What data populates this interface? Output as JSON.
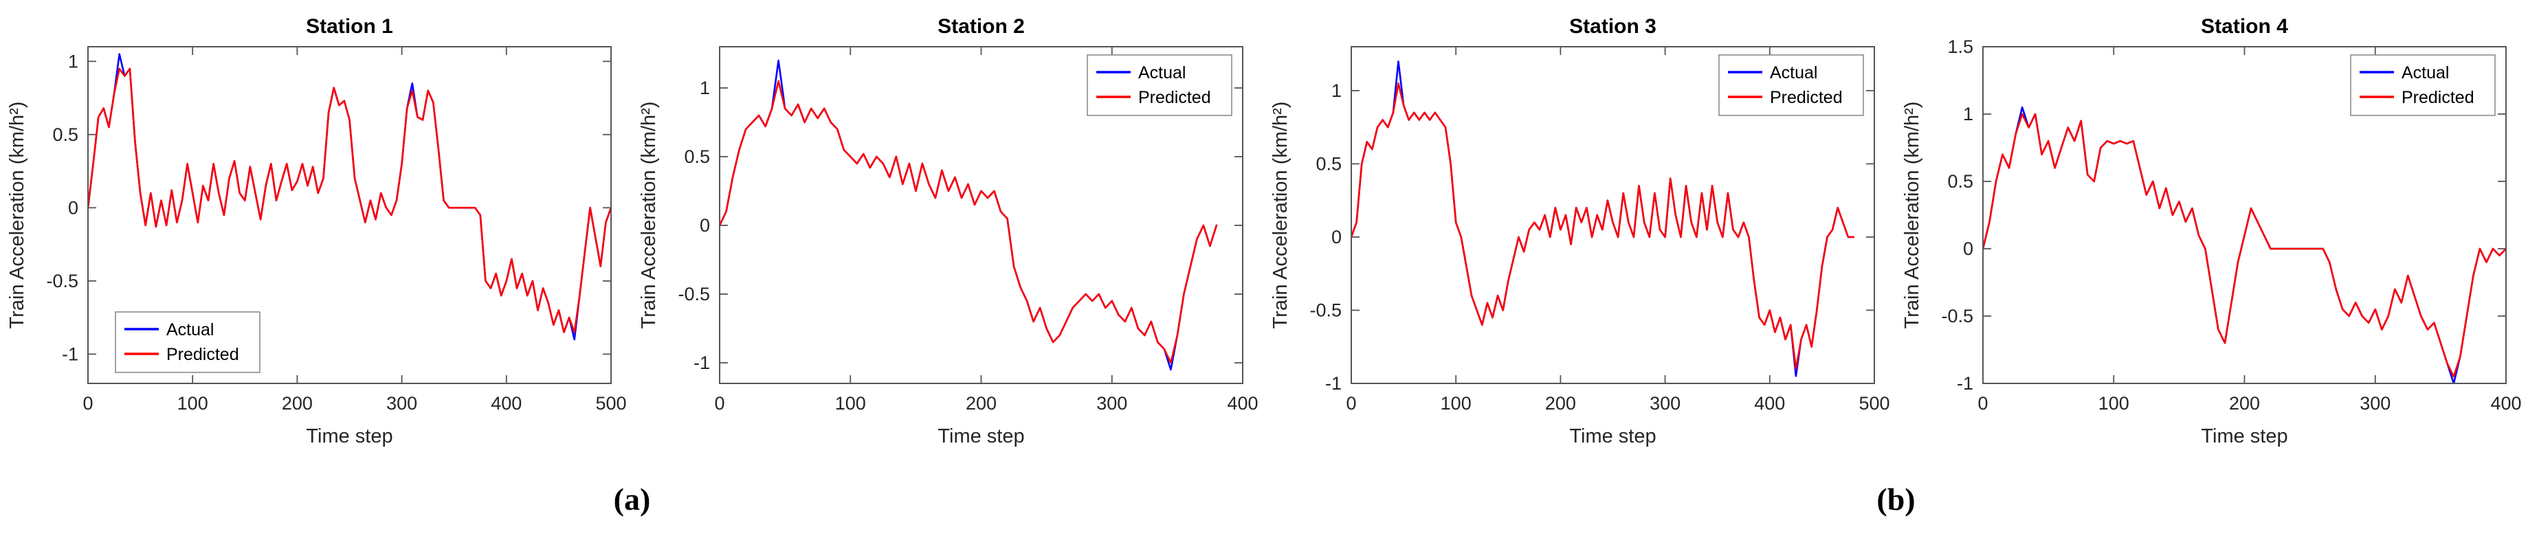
{
  "figure_labels": {
    "a": "(a)",
    "b": "(b)"
  },
  "colors": {
    "actual": "#0000ff",
    "predicted": "#ff0000",
    "axis": "#555555",
    "text": "#262626",
    "background": "#ffffff"
  },
  "chart_data": [
    {
      "type": "line",
      "title": "Station 1",
      "xlabel": "Time step",
      "ylabel": "Train Acceleration (km/h²)",
      "xlim": [
        0,
        500
      ],
      "ylim": [
        -1.2,
        1.1
      ],
      "xticks": [
        0,
        100,
        200,
        300,
        400,
        500
      ],
      "yticks": [
        -1,
        -0.5,
        0,
        0.5,
        1
      ],
      "grid": false,
      "legend_position": "lower-left",
      "x_start": 0,
      "x_step": 5,
      "series": [
        {
          "name": "Actual",
          "color": "#0000ff",
          "values": [
            0,
            0.3,
            0.62,
            0.68,
            0.55,
            0.78,
            1.05,
            0.9,
            0.95,
            0.45,
            0.1,
            -0.12,
            0.1,
            -0.13,
            0.05,
            -0.12,
            0.12,
            -0.1,
            0.05,
            0.3,
            0.1,
            -0.1,
            0.15,
            0.05,
            0.3,
            0.1,
            -0.05,
            0.2,
            0.32,
            0.1,
            0.05,
            0.28,
            0.1,
            -0.08,
            0.15,
            0.3,
            0.05,
            0.18,
            0.3,
            0.12,
            0.18,
            0.3,
            0.15,
            0.28,
            0.1,
            0.2,
            0.65,
            0.82,
            0.7,
            0.73,
            0.6,
            0.2,
            0.05,
            -0.1,
            0.05,
            -0.08,
            0.1,
            0,
            -0.05,
            0.05,
            0.3,
            0.68,
            0.85,
            0.62,
            0.6,
            0.8,
            0.72,
            0.4,
            0.05,
            0,
            0,
            0,
            0,
            0,
            0,
            -0.05,
            -0.5,
            -0.55,
            -0.45,
            -0.6,
            -0.5,
            -0.35,
            -0.55,
            -0.45,
            -0.6,
            -0.5,
            -0.7,
            -0.55,
            -0.65,
            -0.8,
            -0.7,
            -0.85,
            -0.75,
            -0.9,
            -0.6,
            -0.3,
            0,
            -0.2,
            -0.4,
            -0.1,
            0
          ]
        },
        {
          "name": "Predicted",
          "color": "#ff0000",
          "values": [
            0,
            0.3,
            0.62,
            0.68,
            0.55,
            0.78,
            0.95,
            0.9,
            0.95,
            0.45,
            0.1,
            -0.12,
            0.1,
            -0.13,
            0.05,
            -0.12,
            0.12,
            -0.1,
            0.05,
            0.3,
            0.1,
            -0.1,
            0.15,
            0.05,
            0.3,
            0.1,
            -0.05,
            0.2,
            0.32,
            0.1,
            0.05,
            0.28,
            0.1,
            -0.08,
            0.15,
            0.3,
            0.05,
            0.18,
            0.3,
            0.12,
            0.18,
            0.3,
            0.15,
            0.28,
            0.1,
            0.2,
            0.65,
            0.82,
            0.7,
            0.73,
            0.6,
            0.2,
            0.05,
            -0.1,
            0.05,
            -0.08,
            0.1,
            0,
            -0.05,
            0.05,
            0.3,
            0.68,
            0.8,
            0.62,
            0.6,
            0.8,
            0.72,
            0.4,
            0.05,
            0,
            0,
            0,
            0,
            0,
            0,
            -0.05,
            -0.5,
            -0.55,
            -0.45,
            -0.6,
            -0.5,
            -0.35,
            -0.55,
            -0.45,
            -0.6,
            -0.5,
            -0.7,
            -0.55,
            -0.65,
            -0.8,
            -0.7,
            -0.85,
            -0.75,
            -0.85,
            -0.6,
            -0.3,
            0,
            -0.2,
            -0.4,
            -0.1,
            0
          ]
        }
      ]
    },
    {
      "type": "line",
      "title": "Station 2",
      "xlabel": "Time step",
      "ylabel": "Train Acceleration (km/h²)",
      "xlim": [
        0,
        400
      ],
      "ylim": [
        -1.15,
        1.3
      ],
      "xticks": [
        0,
        100,
        200,
        300,
        400
      ],
      "yticks": [
        -1,
        -0.5,
        0,
        0.5,
        1
      ],
      "grid": false,
      "legend_position": "upper-right",
      "x_start": 0,
      "x_step": 5,
      "series": [
        {
          "name": "Actual",
          "color": "#0000ff",
          "values": [
            0,
            0.1,
            0.35,
            0.55,
            0.7,
            0.75,
            0.8,
            0.72,
            0.85,
            1.2,
            0.85,
            0.8,
            0.88,
            0.75,
            0.85,
            0.78,
            0.85,
            0.75,
            0.7,
            0.55,
            0.5,
            0.45,
            0.52,
            0.42,
            0.5,
            0.45,
            0.35,
            0.5,
            0.3,
            0.45,
            0.25,
            0.45,
            0.3,
            0.2,
            0.4,
            0.25,
            0.35,
            0.2,
            0.3,
            0.15,
            0.25,
            0.2,
            0.25,
            0.1,
            0.05,
            -0.3,
            -0.45,
            -0.55,
            -0.7,
            -0.6,
            -0.75,
            -0.85,
            -0.8,
            -0.7,
            -0.6,
            -0.55,
            -0.5,
            -0.55,
            -0.5,
            -0.6,
            -0.55,
            -0.65,
            -0.7,
            -0.6,
            -0.75,
            -0.8,
            -0.7,
            -0.85,
            -0.9,
            -1.05,
            -0.8,
            -0.5,
            -0.3,
            -0.1,
            0,
            -0.15,
            0
          ]
        },
        {
          "name": "Predicted",
          "color": "#ff0000",
          "values": [
            0,
            0.1,
            0.35,
            0.55,
            0.7,
            0.75,
            0.8,
            0.72,
            0.85,
            1.05,
            0.85,
            0.8,
            0.88,
            0.75,
            0.85,
            0.78,
            0.85,
            0.75,
            0.7,
            0.55,
            0.5,
            0.45,
            0.52,
            0.42,
            0.5,
            0.45,
            0.35,
            0.5,
            0.3,
            0.45,
            0.25,
            0.45,
            0.3,
            0.2,
            0.4,
            0.25,
            0.35,
            0.2,
            0.3,
            0.15,
            0.25,
            0.2,
            0.25,
            0.1,
            0.05,
            -0.3,
            -0.45,
            -0.55,
            -0.7,
            -0.6,
            -0.75,
            -0.85,
            -0.8,
            -0.7,
            -0.6,
            -0.55,
            -0.5,
            -0.55,
            -0.5,
            -0.6,
            -0.55,
            -0.65,
            -0.7,
            -0.6,
            -0.75,
            -0.8,
            -0.7,
            -0.85,
            -0.9,
            -1,
            -0.8,
            -0.5,
            -0.3,
            -0.1,
            0,
            -0.15,
            0
          ]
        }
      ]
    },
    {
      "type": "line",
      "title": "Station 3",
      "xlabel": "Time step",
      "ylabel": "Train Acceleration (km/h²)",
      "xlim": [
        0,
        500
      ],
      "ylim": [
        -1,
        1.3
      ],
      "xticks": [
        0,
        100,
        200,
        300,
        400,
        500
      ],
      "yticks": [
        -1,
        -0.5,
        0,
        0.5,
        1
      ],
      "grid": false,
      "legend_position": "upper-right",
      "x_start": 0,
      "x_step": 5,
      "series": [
        {
          "name": "Actual",
          "color": "#0000ff",
          "values": [
            0,
            0.1,
            0.5,
            0.65,
            0.6,
            0.75,
            0.8,
            0.75,
            0.85,
            1.2,
            0.9,
            0.8,
            0.85,
            0.8,
            0.85,
            0.8,
            0.85,
            0.8,
            0.75,
            0.5,
            0.1,
            0,
            -0.2,
            -0.4,
            -0.5,
            -0.6,
            -0.45,
            -0.55,
            -0.4,
            -0.5,
            -0.3,
            -0.15,
            0,
            -0.1,
            0.05,
            0.1,
            0.05,
            0.15,
            0,
            0.2,
            0.05,
            0.15,
            -0.05,
            0.2,
            0.1,
            0.2,
            0,
            0.15,
            0.05,
            0.25,
            0.1,
            0,
            0.3,
            0.1,
            0,
            0.35,
            0.1,
            0,
            0.3,
            0.05,
            0,
            0.4,
            0.15,
            0,
            0.35,
            0.1,
            0,
            0.3,
            0.05,
            0.35,
            0.1,
            0,
            0.3,
            0.05,
            0,
            0.1,
            0,
            -0.3,
            -0.55,
            -0.6,
            -0.5,
            -0.65,
            -0.55,
            -0.7,
            -0.6,
            -0.95,
            -0.7,
            -0.6,
            -0.75,
            -0.5,
            -0.2,
            0,
            0.05,
            0.2,
            0.1,
            0,
            0
          ]
        },
        {
          "name": "Predicted",
          "color": "#ff0000",
          "values": [
            0,
            0.1,
            0.5,
            0.65,
            0.6,
            0.75,
            0.8,
            0.75,
            0.85,
            1.05,
            0.9,
            0.8,
            0.85,
            0.8,
            0.85,
            0.8,
            0.85,
            0.8,
            0.75,
            0.5,
            0.1,
            0,
            -0.2,
            -0.4,
            -0.5,
            -0.6,
            -0.45,
            -0.55,
            -0.4,
            -0.5,
            -0.3,
            -0.15,
            0,
            -0.1,
            0.05,
            0.1,
            0.05,
            0.15,
            0,
            0.2,
            0.05,
            0.15,
            -0.05,
            0.2,
            0.1,
            0.2,
            0,
            0.15,
            0.05,
            0.25,
            0.1,
            0,
            0.3,
            0.1,
            0,
            0.35,
            0.1,
            0,
            0.3,
            0.05,
            0,
            0.4,
            0.15,
            0,
            0.35,
            0.1,
            0,
            0.3,
            0.05,
            0.35,
            0.1,
            0,
            0.3,
            0.05,
            0,
            0.1,
            0,
            -0.3,
            -0.55,
            -0.6,
            -0.5,
            -0.65,
            -0.55,
            -0.7,
            -0.6,
            -0.9,
            -0.7,
            -0.6,
            -0.75,
            -0.5,
            -0.2,
            0,
            0.05,
            0.2,
            0.1,
            0,
            0
          ]
        }
      ]
    },
    {
      "type": "line",
      "title": "Station 4",
      "xlabel": "Time step",
      "ylabel": "Train Acceleration (km/h²)",
      "xlim": [
        0,
        400
      ],
      "ylim": [
        -1,
        1.5
      ],
      "xticks": [
        0,
        100,
        200,
        300,
        400
      ],
      "yticks": [
        -1,
        -0.5,
        0,
        0.5,
        1,
        1.5
      ],
      "grid": false,
      "legend_position": "upper-right",
      "x_start": 0,
      "x_step": 5,
      "series": [
        {
          "name": "Actual",
          "color": "#0000ff",
          "values": [
            0,
            0.2,
            0.5,
            0.7,
            0.6,
            0.85,
            1.05,
            0.9,
            1,
            0.7,
            0.8,
            0.6,
            0.75,
            0.9,
            0.8,
            0.95,
            0.55,
            0.5,
            0.75,
            0.8,
            0.78,
            0.8,
            0.78,
            0.8,
            0.6,
            0.4,
            0.5,
            0.3,
            0.45,
            0.25,
            0.35,
            0.2,
            0.3,
            0.1,
            0,
            -0.3,
            -0.6,
            -0.7,
            -0.4,
            -0.1,
            0.1,
            0.3,
            0.2,
            0.1,
            0,
            0,
            0,
            0,
            0,
            0,
            0,
            0,
            0,
            -0.1,
            -0.3,
            -0.45,
            -0.5,
            -0.4,
            -0.5,
            -0.55,
            -0.45,
            -0.6,
            -0.5,
            -0.3,
            -0.4,
            -0.2,
            -0.35,
            -0.5,
            -0.6,
            -0.55,
            -0.7,
            -0.85,
            -1,
            -0.8,
            -0.5,
            -0.2,
            0,
            -0.1,
            0,
            -0.05,
            0
          ]
        },
        {
          "name": "Predicted",
          "color": "#ff0000",
          "values": [
            0,
            0.2,
            0.5,
            0.7,
            0.6,
            0.85,
            1,
            0.9,
            1,
            0.7,
            0.8,
            0.6,
            0.75,
            0.9,
            0.8,
            0.95,
            0.55,
            0.5,
            0.75,
            0.8,
            0.78,
            0.8,
            0.78,
            0.8,
            0.6,
            0.4,
            0.5,
            0.3,
            0.45,
            0.25,
            0.35,
            0.2,
            0.3,
            0.1,
            0,
            -0.3,
            -0.6,
            -0.7,
            -0.4,
            -0.1,
            0.1,
            0.3,
            0.2,
            0.1,
            0,
            0,
            0,
            0,
            0,
            0,
            0,
            0,
            0,
            -0.1,
            -0.3,
            -0.45,
            -0.5,
            -0.4,
            -0.5,
            -0.55,
            -0.45,
            -0.6,
            -0.5,
            -0.3,
            -0.4,
            -0.2,
            -0.35,
            -0.5,
            -0.6,
            -0.55,
            -0.7,
            -0.85,
            -0.95,
            -0.8,
            -0.5,
            -0.2,
            0,
            -0.1,
            0,
            -0.05,
            0
          ]
        }
      ]
    }
  ]
}
